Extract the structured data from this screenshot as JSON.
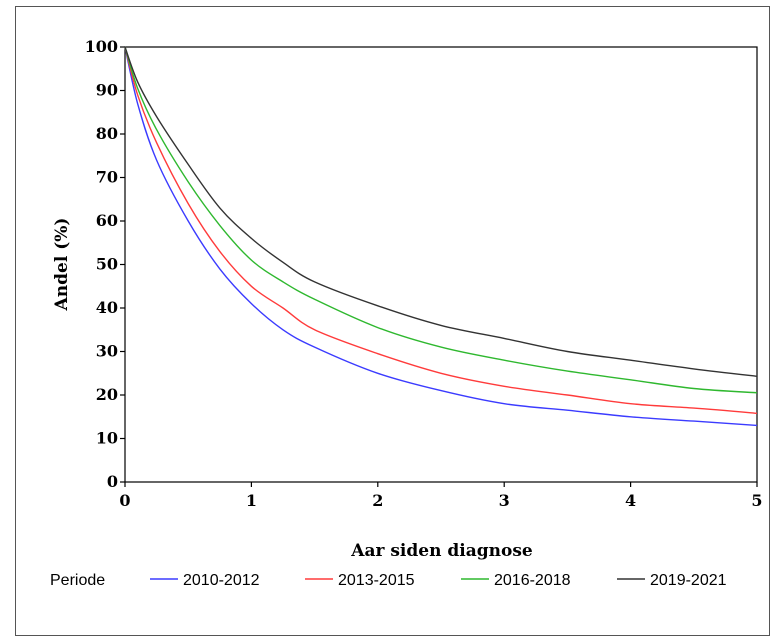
{
  "chart_data": {
    "type": "line",
    "title": "",
    "xlabel": "Aar siden diagnose",
    "ylabel": "Andel (%)",
    "xlim": [
      0,
      5
    ],
    "ylim": [
      0,
      100
    ],
    "xticks": [
      "0",
      "1",
      "2",
      "3",
      "4",
      "5"
    ],
    "yticks": [
      "0",
      "10",
      "20",
      "30",
      "40",
      "50",
      "60",
      "70",
      "80",
      "90",
      "100"
    ],
    "grid": false,
    "legend": {
      "title": "Periode",
      "position": "bottom"
    },
    "series": [
      {
        "name": "2010-2012",
        "color": "#3b3bff",
        "x": [
          0,
          0.1,
          0.25,
          0.5,
          0.75,
          1,
          1.25,
          1.5,
          2,
          2.5,
          3,
          3.5,
          4,
          4.5,
          5
        ],
        "y": [
          100,
          87,
          74,
          60,
          49,
          41,
          35,
          31,
          25,
          21,
          18,
          16.5,
          15,
          14,
          13
        ]
      },
      {
        "name": "2013-2015",
        "color": "#ff3b3b",
        "x": [
          0,
          0.1,
          0.25,
          0.5,
          0.75,
          1,
          1.25,
          1.5,
          2,
          2.5,
          3,
          3.5,
          4,
          4.5,
          5
        ],
        "y": [
          100,
          89,
          78,
          64,
          53,
          45,
          40,
          35,
          29.5,
          25,
          22,
          20,
          18,
          17,
          15.8
        ]
      },
      {
        "name": "2016-2018",
        "color": "#2fb82f",
        "x": [
          0,
          0.1,
          0.25,
          0.5,
          0.75,
          1,
          1.25,
          1.5,
          2,
          2.5,
          3,
          3.5,
          4,
          4.5,
          5
        ],
        "y": [
          100,
          90.5,
          81,
          69,
          59,
          51,
          46,
          42,
          35.5,
          31,
          28,
          25.5,
          23.5,
          21.5,
          20.5
        ]
      },
      {
        "name": "2019-2021",
        "color": "#333333",
        "x": [
          0,
          0.1,
          0.25,
          0.5,
          0.75,
          1,
          1.25,
          1.5,
          2,
          2.5,
          3,
          3.5,
          4,
          4.5,
          5
        ],
        "y": [
          100,
          92,
          84,
          73,
          63,
          56,
          50.5,
          46,
          40.5,
          36,
          33,
          30,
          28,
          26,
          24.3
        ]
      }
    ]
  }
}
